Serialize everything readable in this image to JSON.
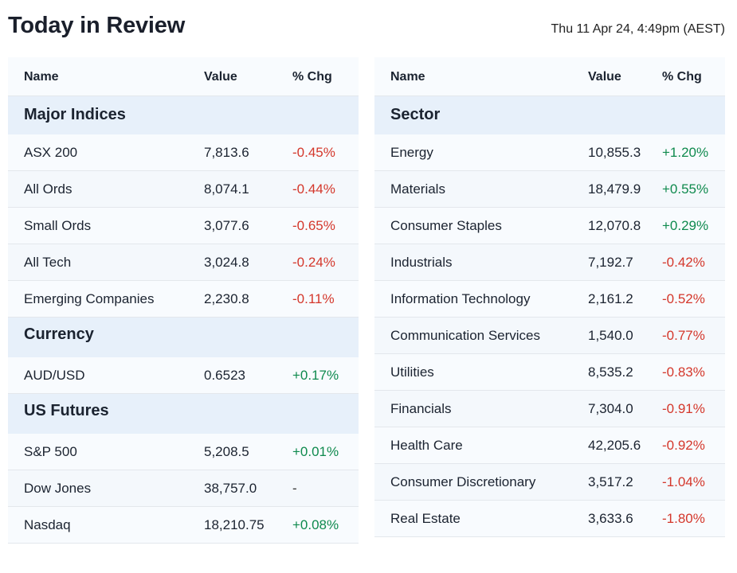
{
  "title": "Today in Review",
  "timestamp": "Thu 11 Apr 24, 4:49pm (AEST)",
  "colors": {
    "negative": "#d4372b",
    "positive": "#0f8a4e",
    "header_bg": "#e7f0fa"
  },
  "left_table": {
    "headers": {
      "name": "Name",
      "value": "Value",
      "chg": "% Chg"
    },
    "sections": [
      {
        "title": "Major Indices",
        "rows": [
          {
            "name": "ASX 200",
            "value": "7,813.6",
            "chg": "-0.45%",
            "dir": "neg"
          },
          {
            "name": "All Ords",
            "value": "8,074.1",
            "chg": "-0.44%",
            "dir": "neg"
          },
          {
            "name": "Small Ords",
            "value": "3,077.6",
            "chg": "-0.65%",
            "dir": "neg"
          },
          {
            "name": "All Tech",
            "value": "3,024.8",
            "chg": "-0.24%",
            "dir": "neg"
          },
          {
            "name": "Emerging Companies",
            "value": "2,230.8",
            "chg": "-0.11%",
            "dir": "neg"
          }
        ]
      },
      {
        "title": "Currency",
        "rows": [
          {
            "name": "AUD/USD",
            "value": "0.6523",
            "chg": "+0.17%",
            "dir": "pos"
          }
        ]
      },
      {
        "title": "US Futures",
        "rows": [
          {
            "name": "S&P 500",
            "value": "5,208.5",
            "chg": "+0.01%",
            "dir": "pos"
          },
          {
            "name": "Dow Jones",
            "value": "38,757.0",
            "chg": "-",
            "dir": "flat"
          },
          {
            "name": "Nasdaq",
            "value": "18,210.75",
            "chg": "+0.08%",
            "dir": "pos"
          }
        ]
      }
    ]
  },
  "right_table": {
    "headers": {
      "name": "Name",
      "value": "Value",
      "chg": "% Chg"
    },
    "sections": [
      {
        "title": "Sector",
        "rows": [
          {
            "name": "Energy",
            "value": "10,855.3",
            "chg": "+1.20%",
            "dir": "pos"
          },
          {
            "name": "Materials",
            "value": "18,479.9",
            "chg": "+0.55%",
            "dir": "pos"
          },
          {
            "name": "Consumer Staples",
            "value": "12,070.8",
            "chg": "+0.29%",
            "dir": "pos"
          },
          {
            "name": "Industrials",
            "value": "7,192.7",
            "chg": "-0.42%",
            "dir": "neg"
          },
          {
            "name": "Information Technology",
            "value": "2,161.2",
            "chg": "-0.52%",
            "dir": "neg"
          },
          {
            "name": "Communication Services",
            "value": "1,540.0",
            "chg": "-0.77%",
            "dir": "neg"
          },
          {
            "name": "Utilities",
            "value": "8,535.2",
            "chg": "-0.83%",
            "dir": "neg"
          },
          {
            "name": "Financials",
            "value": "7,304.0",
            "chg": "-0.91%",
            "dir": "neg"
          },
          {
            "name": "Health Care",
            "value": "42,205.6",
            "chg": "-0.92%",
            "dir": "neg"
          },
          {
            "name": "Consumer Discretionary",
            "value": "3,517.2",
            "chg": "-1.04%",
            "dir": "neg"
          },
          {
            "name": "Real Estate",
            "value": "3,633.6",
            "chg": "-1.80%",
            "dir": "neg"
          }
        ]
      }
    ]
  }
}
